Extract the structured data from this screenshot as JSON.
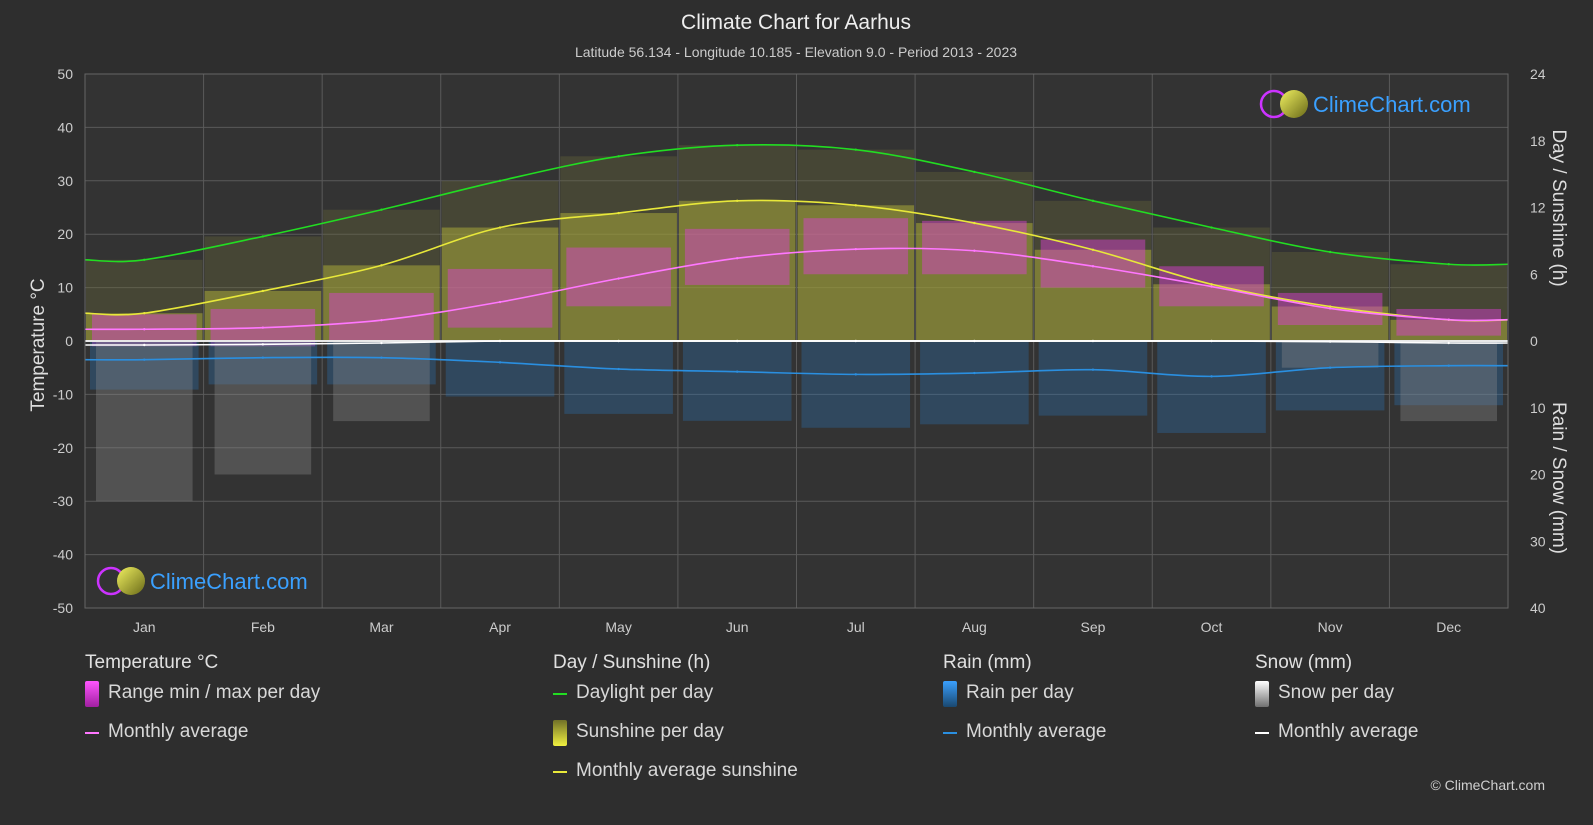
{
  "header": {
    "title": "Climate Chart for Aarhus",
    "subtitle": "Latitude 56.134 - Longitude 10.185 - Elevation 9.0 - Period 2013 - 2023"
  },
  "chart_data": {
    "type": "line",
    "categories": [
      "Jan",
      "Feb",
      "Mar",
      "Apr",
      "May",
      "Jun",
      "Jul",
      "Aug",
      "Sep",
      "Oct",
      "Nov",
      "Dec"
    ],
    "left_axis": {
      "label": "Temperature °C",
      "ylim": [
        -50,
        50
      ],
      "ticks": [
        "50",
        "40",
        "30",
        "20",
        "10",
        "0",
        "-10",
        "-20",
        "-30",
        "-40",
        "-50"
      ]
    },
    "right_axis_top": {
      "label": "Day / Sunshine (h)",
      "ylim": [
        0,
        24
      ],
      "ticks": [
        "24",
        "18",
        "12",
        "6",
        "0"
      ]
    },
    "right_axis_bottom": {
      "label": "Rain / Snow (mm)",
      "ylim": [
        0,
        40
      ],
      "ticks": [
        "0",
        "10",
        "20",
        "30",
        "40"
      ]
    },
    "grid": true,
    "series": [
      {
        "name": "Daylight per day",
        "axis": "sunshine_h",
        "color": "#22dd22",
        "values": [
          7.3,
          9.4,
          11.8,
          14.4,
          16.6,
          17.6,
          17.2,
          15.2,
          12.6,
          10.2,
          8.0,
          6.9
        ]
      },
      {
        "name": "Monthly average sunshine",
        "axis": "sunshine_h",
        "color": "#e8e83a",
        "values": [
          2.5,
          4.5,
          6.8,
          10.2,
          11.5,
          12.6,
          12.2,
          10.6,
          8.2,
          5.1,
          3.1,
          1.9
        ]
      },
      {
        "name": "Monthly average",
        "axis": "temperature_c",
        "color": "#ff77ff",
        "values": [
          2.2,
          2.5,
          3.9,
          7.3,
          11.7,
          15.5,
          17.2,
          16.9,
          14.0,
          10.2,
          6.1,
          4.0
        ]
      },
      {
        "name": "Monthly average",
        "axis": "rain_mm",
        "color": "#2a8fe0",
        "values": [
          2.8,
          2.5,
          2.5,
          3.2,
          4.2,
          4.6,
          5.0,
          4.8,
          4.3,
          5.3,
          4.0,
          3.7
        ]
      },
      {
        "name": "Monthly average",
        "axis": "snow_mm",
        "color": "#ffffff",
        "values": [
          0.6,
          0.5,
          0.3,
          0.0,
          0.0,
          0.0,
          0.0,
          0.0,
          0.0,
          0.0,
          0.1,
          0.3
        ]
      }
    ],
    "temperature_range": {
      "name": "Range min / max per day",
      "min": [
        -1.0,
        -1.0,
        0.0,
        2.5,
        6.5,
        10.5,
        12.5,
        12.5,
        10.0,
        6.5,
        3.0,
        1.0
      ],
      "max": [
        5.0,
        6.0,
        9.0,
        13.5,
        17.5,
        21.0,
        23.0,
        22.5,
        19.0,
        14.0,
        9.0,
        6.0
      ]
    }
  },
  "colors": {
    "background": "#2e2e2e",
    "plot_background": "#333333",
    "grid": "#5a5a5a",
    "sunshine_fill": "#a8a838",
    "temp_range_fill": "#e03ed8",
    "rain_fill": "#2a6fb0",
    "snow_fill": "#8c8c8c"
  },
  "logo": {
    "text": "ClimeChart.com",
    "color": "#3aa0ff"
  },
  "legend": {
    "groups": [
      {
        "title": "Temperature °C",
        "items": [
          {
            "label": "Range min / max per day",
            "swatch": "box",
            "color": "#e83ee0"
          },
          {
            "label": "Monthly average",
            "swatch": "line",
            "color": "#ff77ff"
          }
        ]
      },
      {
        "title": "Day / Sunshine (h)",
        "items": [
          {
            "label": "Daylight per day",
            "swatch": "line",
            "color": "#22dd22"
          },
          {
            "label": "Sunshine per day",
            "swatch": "box",
            "color": "#d6d63a"
          },
          {
            "label": "Monthly average sunshine",
            "swatch": "line",
            "color": "#e8e83a"
          }
        ]
      },
      {
        "title": "Rain (mm)",
        "items": [
          {
            "label": "Rain per day",
            "swatch": "box",
            "color": "#2a8fe0"
          },
          {
            "label": "Monthly average",
            "swatch": "line",
            "color": "#2a8fe0"
          }
        ]
      },
      {
        "title": "Snow (mm)",
        "items": [
          {
            "label": "Snow per day",
            "swatch": "box",
            "color": "#dddddd"
          },
          {
            "label": "Monthly average",
            "swatch": "line",
            "color": "#ffffff"
          }
        ]
      }
    ]
  },
  "copyright": "© ClimeChart.com"
}
